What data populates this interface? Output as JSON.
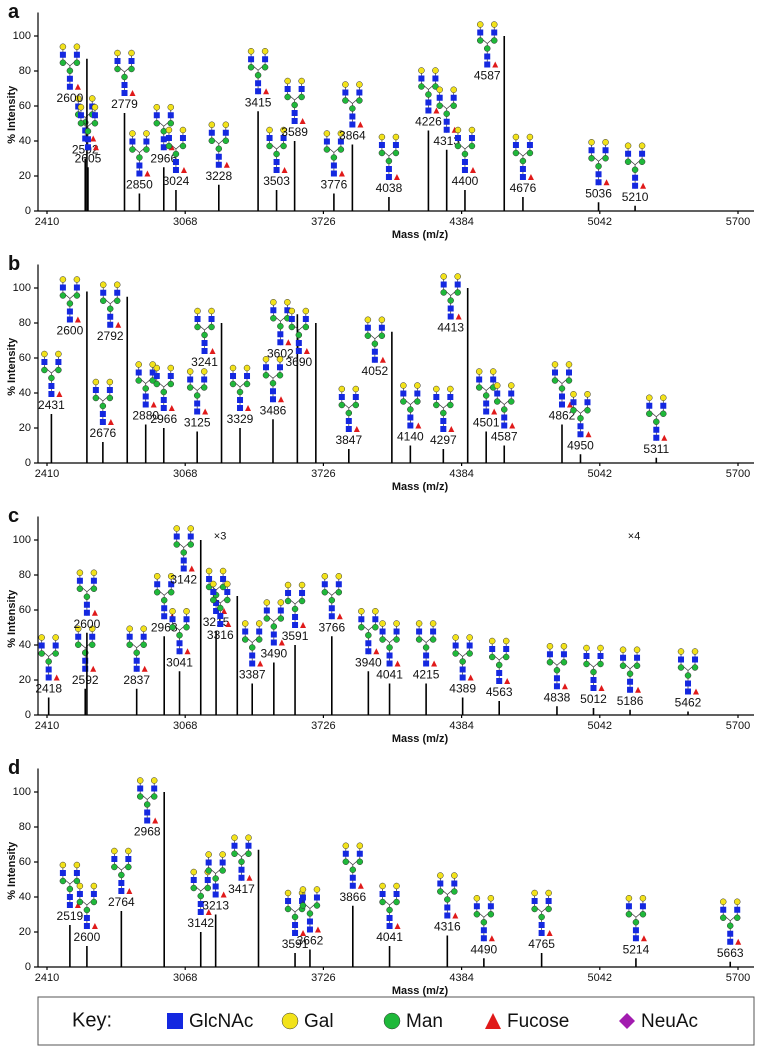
{
  "chart_data": [
    {
      "type": "spectrum",
      "panel": "a",
      "ylabel": "% Intensity",
      "xlabel": "Mass (m/z)",
      "color": "#000000",
      "xlim": [
        2410,
        5700
      ],
      "xticks": [
        2410,
        3068,
        3726,
        4384,
        5042,
        5700
      ],
      "ylim": [
        0,
        110
      ],
      "yticks": [
        0,
        20,
        40,
        60,
        80,
        100
      ],
      "x": [
        2592,
        2600,
        2605,
        2779,
        2850,
        2966,
        3024,
        3228,
        3415,
        3503,
        3589,
        3776,
        3864,
        4038,
        4226,
        4313,
        4400,
        4587,
        4676,
        5036,
        5210
      ],
      "values": [
        30,
        87,
        25,
        56,
        10,
        25,
        12,
        15,
        57,
        12,
        40,
        10,
        38,
        8,
        46,
        35,
        12,
        100,
        8,
        5,
        3
      ]
    },
    {
      "type": "spectrum",
      "panel": "b",
      "ylabel": "% Intensity",
      "xlabel": "Mass (m/z)",
      "color": "#000000",
      "xlim": [
        2410,
        5700
      ],
      "xticks": [
        2410,
        3068,
        3726,
        4384,
        5042,
        5700
      ],
      "ylim": [
        0,
        110
      ],
      "yticks": [
        0,
        20,
        40,
        60,
        80,
        100
      ],
      "x": [
        2431,
        2600,
        2676,
        2792,
        2880,
        2966,
        3125,
        3241,
        3329,
        3486,
        3602,
        3690,
        3847,
        4052,
        4140,
        4297,
        4413,
        4501,
        4587,
        4862,
        4950,
        5311
      ],
      "values": [
        28,
        98,
        12,
        95,
        22,
        20,
        18,
        80,
        20,
        25,
        85,
        80,
        8,
        75,
        10,
        8,
        100,
        18,
        10,
        22,
        5,
        3
      ]
    },
    {
      "type": "spectrum",
      "panel": "c",
      "ylabel": "% Intensity",
      "xlabel": "Mass (m/z)",
      "color": "#000000",
      "xlim": [
        2410,
        5700
      ],
      "xticks": [
        2410,
        3068,
        3726,
        4384,
        5042,
        5700
      ],
      "ylim": [
        0,
        110
      ],
      "yticks": [
        0,
        20,
        40,
        60,
        80,
        100
      ],
      "x": [
        2418,
        2592,
        2600,
        2837,
        2968,
        3041,
        3142,
        3215,
        3316,
        3387,
        3490,
        3591,
        3766,
        3940,
        4041,
        4215,
        4389,
        4563,
        4838,
        5012,
        5186,
        5462
      ],
      "values": [
        10,
        15,
        47,
        15,
        45,
        25,
        100,
        48,
        68,
        18,
        30,
        40,
        45,
        25,
        18,
        18,
        10,
        8,
        5,
        4,
        3,
        2
      ],
      "annotations": [
        {
          "text": "×3",
          "x": 3215
        },
        {
          "text": "×4",
          "x": 5186
        }
      ]
    },
    {
      "type": "spectrum",
      "panel": "d",
      "ylabel": "% Intensity",
      "xlabel": "Mass (m/z)",
      "color": "#000000",
      "xlim": [
        2410,
        5700
      ],
      "xticks": [
        2410,
        3068,
        3726,
        4384,
        5042,
        5700
      ],
      "ylim": [
        0,
        110
      ],
      "yticks": [
        0,
        20,
        40,
        60,
        80,
        100
      ],
      "x": [
        2519,
        2600,
        2764,
        2968,
        3142,
        3213,
        3417,
        3591,
        3662,
        3866,
        4041,
        4316,
        4490,
        4765,
        5214,
        5663
      ],
      "values": [
        24,
        12,
        32,
        100,
        20,
        30,
        67,
        8,
        10,
        35,
        12,
        18,
        5,
        8,
        5,
        3
      ]
    }
  ],
  "key": {
    "title": "Key:",
    "items": [
      {
        "name": "GlcNAc",
        "color": "#1428e0"
      },
      {
        "name": "Gal",
        "color": "#f2e21a"
      },
      {
        "name": "Man",
        "color": "#1fb83a"
      },
      {
        "name": "Fucose",
        "color": "#e01a1a"
      },
      {
        "name": "NeuAc",
        "color": "#a21caf"
      }
    ]
  }
}
